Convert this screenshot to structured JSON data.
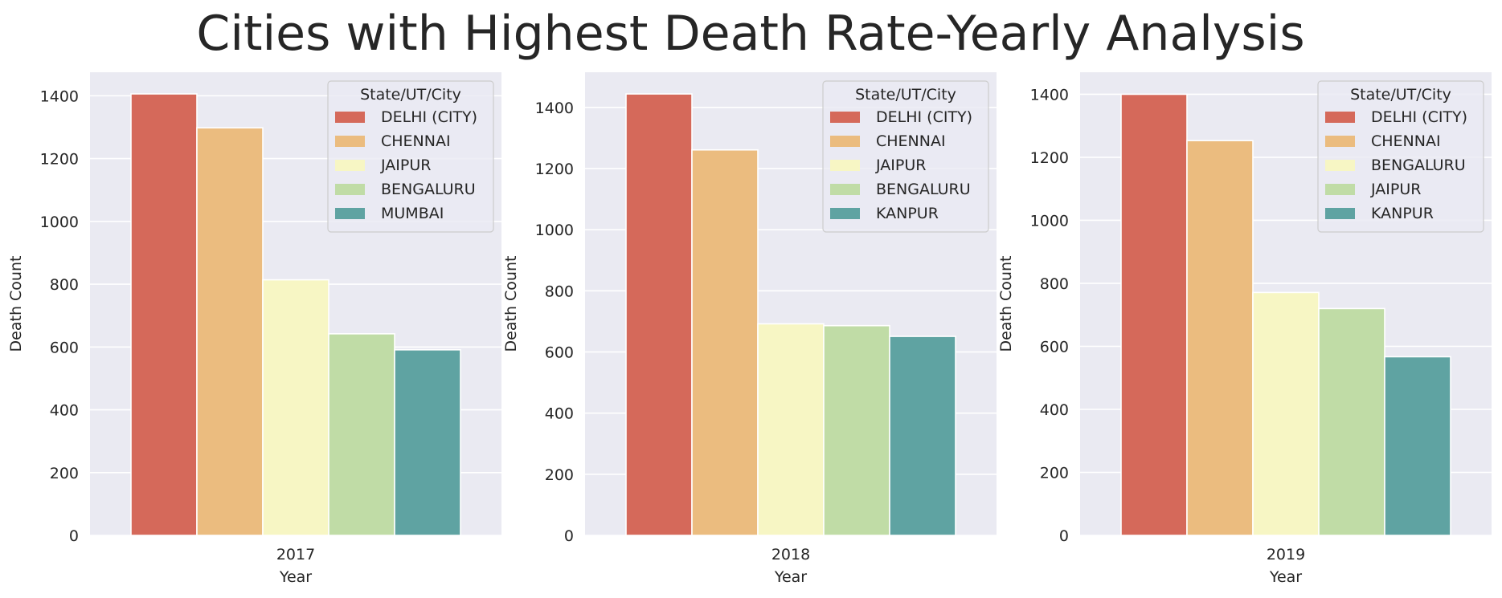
{
  "title": "Cities with Highest Death Rate-Yearly Analysis",
  "colors": {
    "plot_background": "#eaeaf2",
    "grid": "#ffffff",
    "text": "#262626"
  },
  "chart_data": [
    {
      "type": "bar",
      "categories": [
        "2017"
      ],
      "xlabel": "Year",
      "ylabel": "Death Count",
      "ylim": [
        0,
        1475
      ],
      "yticks": [
        0,
        200,
        400,
        600,
        800,
        1000,
        1200,
        1400
      ],
      "legend_title": "State/UT/City",
      "legend_position": "top-right",
      "grid": true,
      "series": [
        {
          "name": "DELHI (CITY)",
          "values": [
            1406
          ],
          "color": "#d5695a"
        },
        {
          "name": "CHENNAI",
          "values": [
            1298
          ],
          "color": "#ebbc7f"
        },
        {
          "name": "JAIPUR",
          "values": [
            814
          ],
          "color": "#f7f6c4"
        },
        {
          "name": "BENGALURU",
          "values": [
            642
          ],
          "color": "#c0dca6"
        },
        {
          "name": "MUMBAI",
          "values": [
            591
          ],
          "color": "#5fa3a2"
        }
      ]
    },
    {
      "type": "bar",
      "categories": [
        "2018"
      ],
      "xlabel": "Year",
      "ylabel": "Death Count",
      "ylim": [
        0,
        1515
      ],
      "yticks": [
        0,
        200,
        400,
        600,
        800,
        1000,
        1200,
        1400
      ],
      "legend_title": "State/UT/City",
      "legend_position": "top-right",
      "grid": true,
      "series": [
        {
          "name": "DELHI (CITY)",
          "values": [
            1444
          ],
          "color": "#d5695a"
        },
        {
          "name": "CHENNAI",
          "values": [
            1261
          ],
          "color": "#ebbc7f"
        },
        {
          "name": "JAIPUR",
          "values": [
            692
          ],
          "color": "#f7f6c4"
        },
        {
          "name": "BENGALURU",
          "values": [
            686
          ],
          "color": "#c0dca6"
        },
        {
          "name": "KANPUR",
          "values": [
            651
          ],
          "color": "#5fa3a2"
        }
      ]
    },
    {
      "type": "bar",
      "categories": [
        "2019"
      ],
      "xlabel": "Year",
      "ylabel": "Death Count",
      "ylim": [
        0,
        1470
      ],
      "yticks": [
        0,
        200,
        400,
        600,
        800,
        1000,
        1200,
        1400
      ],
      "legend_title": "State/UT/City",
      "legend_position": "top-right",
      "grid": true,
      "series": [
        {
          "name": "DELHI (CITY)",
          "values": [
            1400
          ],
          "color": "#d5695a"
        },
        {
          "name": "CHENNAI",
          "values": [
            1253
          ],
          "color": "#ebbc7f"
        },
        {
          "name": "BENGALURU",
          "values": [
            771
          ],
          "color": "#f7f6c4"
        },
        {
          "name": "JAIPUR",
          "values": [
            720
          ],
          "color": "#c0dca6"
        },
        {
          "name": "KANPUR",
          "values": [
            567
          ],
          "color": "#5fa3a2"
        }
      ]
    }
  ]
}
